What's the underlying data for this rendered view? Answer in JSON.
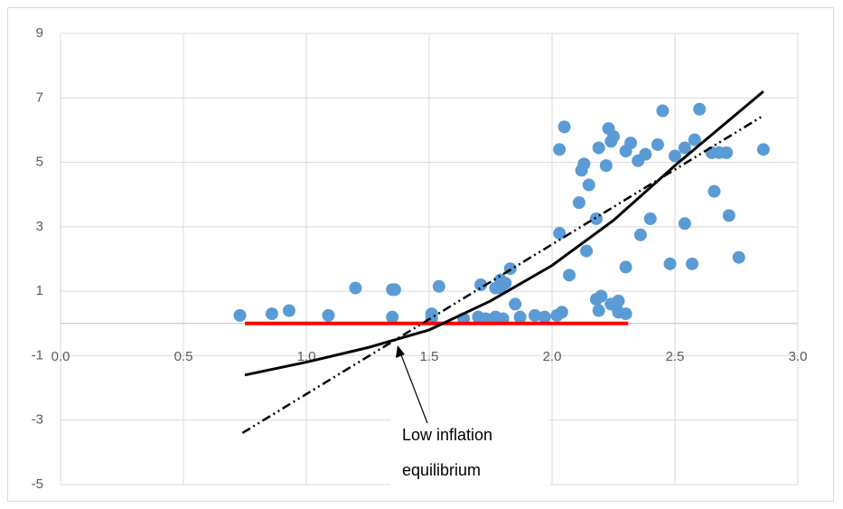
{
  "chart_data": {
    "type": "scatter",
    "xlim": [
      0,
      3
    ],
    "xticks": [
      {
        "value": 0,
        "label": "0.0"
      },
      0.5,
      {
        "value": 1,
        "label": "1.0"
      },
      1.5,
      {
        "value": 2,
        "label": "2.0"
      },
      2.5,
      {
        "value": 3,
        "label": "3.0"
      }
    ],
    "ylim": [
      -5,
      9
    ],
    "yticks": [
      -5,
      -3,
      -1,
      1,
      3,
      5,
      7,
      9
    ],
    "grid": true,
    "points": {
      "color": "#5b9bd5",
      "x": [
        0.73,
        0.86,
        0.93,
        1.09,
        1.2,
        1.35,
        1.36,
        1.35,
        1.54,
        1.51,
        1.51,
        1.64,
        1.71,
        1.7,
        1.73,
        1.77,
        1.79,
        1.79,
        1.77,
        1.81,
        1.8,
        1.83,
        1.85,
        1.87,
        1.93,
        1.97,
        2.02,
        2.04,
        2.03,
        2.03,
        2.05,
        2.07,
        2.11,
        2.12,
        2.13,
        2.15,
        2.14,
        2.18,
        2.19,
        2.18,
        2.2,
        2.19,
        2.22,
        2.23,
        2.24,
        2.25,
        2.24,
        2.26,
        2.27,
        2.27,
        2.3,
        2.3,
        2.32,
        2.3,
        2.35,
        2.36,
        2.38,
        2.4,
        2.43,
        2.45,
        2.48,
        2.5,
        2.54,
        2.54,
        2.57,
        2.58,
        2.6,
        2.65,
        2.68,
        2.66,
        2.71,
        2.72,
        2.76,
        2.86
      ],
      "y": [
        0.25,
        0.3,
        0.4,
        0.25,
        1.1,
        1.05,
        1.05,
        0.2,
        1.15,
        0.3,
        0.15,
        0.15,
        1.2,
        0.2,
        0.15,
        0.2,
        1.35,
        1.1,
        1.1,
        1.25,
        0.15,
        1.7,
        0.6,
        0.2,
        0.25,
        0.2,
        0.25,
        0.35,
        2.8,
        5.4,
        6.1,
        1.5,
        3.75,
        4.75,
        4.95,
        4.3,
        2.25,
        3.25,
        5.45,
        0.75,
        0.85,
        0.4,
        4.9,
        6.05,
        5.65,
        5.8,
        0.6,
        0.55,
        0.7,
        0.35,
        0.3,
        5.35,
        5.6,
        1.75,
        5.05,
        2.75,
        5.25,
        3.25,
        5.55,
        6.6,
        1.85,
        5.2,
        5.45,
        3.1,
        1.85,
        5.7,
        6.65,
        5.3,
        5.3,
        4.1,
        5.3,
        3.35,
        2.05,
        5.4
      ]
    },
    "lines": [
      {
        "color": "#ff0000",
        "width": 4,
        "style": "solid",
        "x": [
          0.75,
          2.31
        ],
        "y": [
          0,
          0
        ]
      },
      {
        "color": "#000000",
        "width": 3,
        "style": "solid",
        "x": [
          0.75,
          1.0,
          1.25,
          1.5,
          1.75,
          2.0,
          2.25,
          2.5,
          2.86
        ],
        "y": [
          -1.6,
          -1.2,
          -0.75,
          -0.2,
          0.7,
          1.8,
          3.2,
          4.9,
          7.2
        ]
      },
      {
        "color": "#000000",
        "width": 2.5,
        "style": "dash-dot",
        "x": [
          0.74,
          2.86
        ],
        "y": [
          -3.4,
          6.45
        ]
      }
    ],
    "annotation": [
      "Low inflation",
      "equilibrium"
    ]
  }
}
